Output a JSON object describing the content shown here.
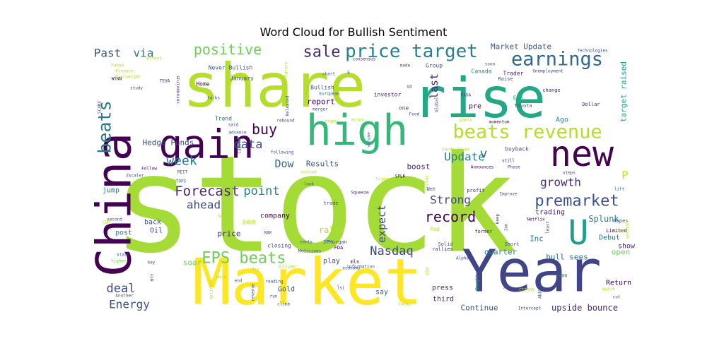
{
  "chart_data": {
    "type": "wordcloud",
    "title": "Word Cloud for Bullish Sentiment",
    "words": [
      {
        "text": "stock",
        "weight": 100,
        "color": "#a5db36"
      },
      {
        "text": "Market",
        "weight": 62,
        "color": "#fde725"
      },
      {
        "text": "share",
        "weight": 62,
        "color": "#b5de2b"
      },
      {
        "text": "rise",
        "weight": 58,
        "color": "#22a884"
      },
      {
        "text": "Year",
        "weight": 56,
        "color": "#414487"
      },
      {
        "text": "China",
        "weight": 48,
        "color": "#440154"
      },
      {
        "text": "high",
        "weight": 46,
        "color": "#35b779"
      },
      {
        "text": "new",
        "weight": 40,
        "color": "#440154"
      },
      {
        "text": "gain",
        "weight": 40,
        "color": "#440154"
      },
      {
        "text": "U",
        "weight": 34,
        "color": "#1f9e89"
      },
      {
        "text": "beats revenue",
        "weight": 24,
        "color": "#b5de2b"
      },
      {
        "text": "earnings",
        "weight": 22,
        "color": "#31688e"
      },
      {
        "text": "price target",
        "weight": 22,
        "color": "#26828e"
      },
      {
        "text": "beats",
        "weight": 22,
        "color": "#2a788e"
      },
      {
        "text": "premarket",
        "weight": 18,
        "color": "#3b528b"
      },
      {
        "text": "EPS beats",
        "weight": 18,
        "color": "#6ece58"
      },
      {
        "text": "sale",
        "weight": 18,
        "color": "#482878"
      },
      {
        "text": "positive",
        "weight": 17,
        "color": "#6ece58"
      },
      {
        "text": "record",
        "weight": 17,
        "color": "#440154"
      },
      {
        "text": "buy",
        "weight": 17,
        "color": "#440154"
      },
      {
        "text": "Nasdaq",
        "weight": 15,
        "color": "#3e4a89"
      },
      {
        "text": "Forecast",
        "weight": 15,
        "color": "#482878"
      },
      {
        "text": "week",
        "weight": 15,
        "color": "#2a788e"
      },
      {
        "text": "v",
        "weight": 15,
        "color": "#31688e"
      },
      {
        "text": "data",
        "weight": 15,
        "color": "#3b528b"
      },
      {
        "text": "deal",
        "weight": 15,
        "color": "#3e4a89"
      },
      {
        "text": "Update",
        "weight": 14,
        "color": "#26828e"
      },
      {
        "text": "Strong",
        "weight": 14,
        "color": "#414487"
      },
      {
        "text": "point",
        "weight": 14,
        "color": "#26828e"
      },
      {
        "text": "ahead",
        "weight": 14,
        "color": "#3e4a89"
      },
      {
        "text": "growth",
        "weight": 14,
        "color": "#482878"
      },
      {
        "text": "Energy",
        "weight": 14,
        "color": "#3b528b"
      },
      {
        "text": "Past",
        "weight": 14,
        "color": "#3b528b"
      },
      {
        "text": "via",
        "weight": 14,
        "color": "#2a788e"
      },
      {
        "text": "P",
        "weight": 14,
        "color": "#cde11d"
      },
      {
        "text": "Dow",
        "weight": 13,
        "color": "#31688e"
      },
      {
        "text": "expect",
        "weight": 13,
        "color": "#3e4a89"
      },
      {
        "text": "last",
        "weight": 12,
        "color": "#482878"
      },
      {
        "text": "Splunk",
        "weight": 11,
        "color": "#26828e"
      },
      {
        "text": "Results",
        "weight": 10,
        "color": "#3b528b"
      },
      {
        "text": "Hedge Funds",
        "weight": 10,
        "color": "#3e4a89"
      },
      {
        "text": "Market Update",
        "weight": 10,
        "color": "#3b528b"
      },
      {
        "text": "target raised",
        "weight": 10,
        "color": "#1f9e89"
      },
      {
        "text": "bull sees",
        "weight": 10,
        "color": "#31688e"
      },
      {
        "text": "upside bounce",
        "weight": 10,
        "color": "#482878"
      },
      {
        "text": "Continue",
        "weight": 10,
        "color": "#3b528b"
      },
      {
        "text": "boost",
        "weight": 10,
        "color": "#482878"
      },
      {
        "text": "rally",
        "weight": 10,
        "color": "#b5de2b"
      },
      {
        "text": "report",
        "weight": 10,
        "color": "#440154"
      },
      {
        "text": "Inc",
        "weight": 10,
        "color": "#2a788e"
      },
      {
        "text": "quarter",
        "weight": 9,
        "color": "#26828e"
      },
      {
        "text": "open",
        "weight": 9,
        "color": "#6ece58"
      },
      {
        "text": "soar",
        "weight": 9,
        "color": "#6ece58"
      },
      {
        "text": "price",
        "weight": 9,
        "color": "#482878"
      },
      {
        "text": "see",
        "weight": 9,
        "color": "#b5de2b"
      },
      {
        "text": "company",
        "weight": 9,
        "color": "#440154"
      },
      {
        "text": "trading",
        "weight": 9,
        "color": "#482878"
      },
      {
        "text": "Return",
        "weight": 9,
        "color": "#440154"
      },
      {
        "text": "back",
        "weight": 9,
        "color": "#3b528b"
      },
      {
        "text": "Oil",
        "weight": 9,
        "color": "#3e4a89"
      },
      {
        "text": "jump",
        "weight": 9,
        "color": "#2a788e"
      },
      {
        "text": "Gold",
        "weight": 9,
        "color": "#3b528b"
      },
      {
        "text": "say",
        "weight": 9,
        "color": "#31688e"
      },
      {
        "text": "third",
        "weight": 9,
        "color": "#482878"
      },
      {
        "text": "press",
        "weight": 9,
        "color": "#482878"
      },
      {
        "text": "play",
        "weight": 9,
        "color": "#3b528b"
      },
      {
        "text": "post",
        "weight": 9,
        "color": "#26828e"
      },
      {
        "text": "Debut",
        "weight": 9,
        "color": "#2a788e"
      },
      {
        "text": "show",
        "weight": 9,
        "color": "#482878"
      },
      {
        "text": "Ago",
        "weight": 9,
        "color": "#26828e"
      },
      {
        "text": "pre",
        "weight": 9,
        "color": "#440154"
      },
      {
        "text": "one",
        "weight": 8,
        "color": "#3b528b"
      },
      {
        "text": "Bullish",
        "weight": 8,
        "color": "#3b528b"
      },
      {
        "text": "Group",
        "weight": 8,
        "color": "#3b528b"
      },
      {
        "text": "Canada",
        "weight": 8,
        "color": "#26828e"
      },
      {
        "text": "Trader",
        "weight": 8,
        "color": "#482878"
      },
      {
        "text": "EPS",
        "weight": 8,
        "color": "#22a884"
      },
      {
        "text": "buyback",
        "weight": 8,
        "color": "#3b528b"
      },
      {
        "text": "Trend",
        "weight": 8,
        "color": "#31688e"
      },
      {
        "text": "January",
        "weight": 8,
        "color": "#3b528b"
      },
      {
        "text": "Home",
        "weight": 8,
        "color": "#440154"
      },
      {
        "text": "Never Bullish",
        "weight": 8,
        "color": "#3b528b"
      },
      {
        "text": "investor",
        "weight": 8,
        "color": "#482878"
      },
      {
        "text": "closing",
        "weight": 8,
        "color": "#3e4a89"
      },
      {
        "text": "Dollar",
        "weight": 7,
        "color": "#482878"
      },
      {
        "text": "change",
        "weight": 7,
        "color": "#482878"
      },
      {
        "text": "Raise",
        "weight": 7,
        "color": "#3b528b"
      },
      {
        "text": "Toyota",
        "weight": 7,
        "color": "#3b528b"
      },
      {
        "text": "mln",
        "weight": 7,
        "color": "#440154"
      },
      {
        "text": "Solid",
        "weight": 7,
        "color": "#3b528b"
      },
      {
        "text": "JPMorgan",
        "weight": 7,
        "color": "#3b528b"
      },
      {
        "text": "FDA",
        "weight": 7,
        "color": "#440154"
      },
      {
        "text": "Fed",
        "weight": 7,
        "color": "#b5de2b"
      },
      {
        "text": "Net",
        "weight": 7,
        "color": "#3b528b"
      },
      {
        "text": "profit",
        "weight": 7,
        "color": "#482878"
      },
      {
        "text": "Silver",
        "weight": 7,
        "color": "#b5de2b"
      },
      {
        "text": "trade",
        "weight": 7,
        "color": "#3b528b"
      },
      {
        "text": "rallies",
        "weight": 7,
        "color": "#482878"
      },
      {
        "text": "former",
        "weight": 7,
        "color": "#482878"
      },
      {
        "text": "Limited",
        "weight": 7,
        "color": "#440154"
      },
      {
        "text": "Hopes",
        "weight": 7,
        "color": "#3b528b"
      },
      {
        "text": "Short",
        "weight": 7,
        "color": "#3b528b"
      },
      {
        "text": "Alpha",
        "weight": 6,
        "color": "#3b528b"
      },
      {
        "text": "Bought",
        "weight": 6,
        "color": "#22a884"
      },
      {
        "text": "key",
        "weight": 6,
        "color": "#3b528b"
      },
      {
        "text": "start",
        "weight": 6,
        "color": "#3b528b"
      },
      {
        "text": "higher",
        "weight": 6,
        "color": "#6ece58"
      },
      {
        "text": "day",
        "weight": 6,
        "color": "#b5de2b"
      },
      {
        "text": "WYNN",
        "weight": 6,
        "color": "#440154"
      },
      {
        "text": "TEVA",
        "weight": 6,
        "color": "#482878"
      },
      {
        "text": "SPLK",
        "weight": 6,
        "color": "#440154"
      },
      {
        "text": "Announces",
        "weight": 6,
        "color": "#440154"
      },
      {
        "text": "Squeeze",
        "weight": 6,
        "color": "#482878"
      },
      {
        "text": "Friday",
        "weight": 6,
        "color": "#b5de2b"
      },
      {
        "text": "Zscaler",
        "weight": 6,
        "color": "#3b528b"
      },
      {
        "text": "REIT",
        "weight": 6,
        "color": "#3b528b"
      },
      {
        "text": "TOPS",
        "weight": 6,
        "color": "#31688e"
      },
      {
        "text": "Follow",
        "weight": 6,
        "color": "#440154"
      },
      {
        "text": "Technologies",
        "weight": 6,
        "color": "#3b528b"
      },
      {
        "text": "Unemployment",
        "weight": 6,
        "color": "#3e4a89"
      },
      {
        "text": "consensus",
        "weight": 6,
        "color": "#482878"
      },
      {
        "text": "soon",
        "weight": 6,
        "color": "#3b528b"
      },
      {
        "text": "made",
        "weight": 6,
        "color": "#3b528b"
      },
      {
        "text": "European",
        "weight": 6,
        "color": "#31688e"
      },
      {
        "text": "merger",
        "weight": 6,
        "color": "#3b528b"
      },
      {
        "text": "Food",
        "weight": 6,
        "color": "#3b528b"
      },
      {
        "text": "RADA",
        "weight": 6,
        "color": "#3b528b"
      },
      {
        "text": "momentum",
        "weight": 6,
        "color": "#440154"
      },
      {
        "text": "Funds Never",
        "weight": 6,
        "color": "#b5de2b"
      },
      {
        "text": "still",
        "weight": 6,
        "color": "#482878"
      },
      {
        "text": "Phase",
        "weight": 6,
        "color": "#3b528b"
      },
      {
        "text": "steps",
        "weight": 6,
        "color": "#3b528b"
      },
      {
        "text": "lift",
        "weight": 6,
        "color": "#31688e"
      },
      {
        "text": "Improve",
        "weight": 6,
        "color": "#3b528b"
      },
      {
        "text": "Netflix",
        "weight": 6,
        "color": "#440154"
      },
      {
        "text": "least",
        "weight": 6,
        "color": "#3b528b"
      },
      {
        "text": "Jan",
        "weight": 6,
        "color": "#3b528b"
      },
      {
        "text": "Keep",
        "weight": 6,
        "color": "#3b528b"
      },
      {
        "text": "CITRON",
        "weight": 6,
        "color": "#b5de2b"
      },
      {
        "text": "Intercept",
        "weight": 6,
        "color": "#3b528b"
      },
      {
        "text": "AbbVie",
        "weight": 6,
        "color": "#3b528b"
      },
      {
        "text": "SONO",
        "weight": 6,
        "color": "#31688e"
      },
      {
        "text": "Watch",
        "weight": 6,
        "color": "#b5de2b"
      },
      {
        "text": "cut",
        "weight": 6,
        "color": "#3b528b"
      },
      {
        "text": "today",
        "weight": 6,
        "color": "#b5de2b"
      },
      {
        "text": "lsi",
        "weight": 6,
        "color": "#3b528b"
      },
      {
        "text": "climb",
        "weight": 6,
        "color": "#31688e"
      },
      {
        "text": "run",
        "weight": 6,
        "color": "#3b528b"
      },
      {
        "text": "reading",
        "weight": 6,
        "color": "#3b528b"
      },
      {
        "text": "end",
        "weight": 6,
        "color": "#3b528b"
      },
      {
        "text": "Another",
        "weight": 6,
        "color": "#3b528b"
      },
      {
        "text": "amid",
        "weight": 6,
        "color": "#b5de2b"
      },
      {
        "text": "MTY",
        "weight": 6,
        "color": "#3b528b"
      },
      {
        "text": "revenue",
        "weight": 6,
        "color": "#3b528b"
      },
      {
        "text": "information",
        "weight": 6,
        "color": "#3b528b"
      },
      {
        "text": "cents",
        "weight": 6,
        "color": "#3b528b"
      },
      {
        "text": "Medicines",
        "weight": 6,
        "color": "#3b528b"
      },
      {
        "text": "MAR",
        "weight": 6,
        "color": "#3b528b"
      },
      {
        "text": "Gained",
        "weight": 6,
        "color": "#b5de2b"
      },
      {
        "text": "second",
        "weight": 6,
        "color": "#3b528b"
      },
      {
        "text": "CEO",
        "weight": 6,
        "color": "#b5de2b"
      },
      {
        "text": "SCANX",
        "weight": 6,
        "color": "#3b528b"
      },
      {
        "text": "coronavirus",
        "weight": 6,
        "color": "#482878"
      },
      {
        "text": "effect",
        "weight": 6,
        "color": "#b5de2b"
      },
      {
        "text": "Finance",
        "weight": 6,
        "color": "#b5de2b"
      },
      {
        "text": "Yahoo",
        "weight": 6,
        "color": "#b5de2b"
      },
      {
        "text": "study",
        "weight": 6,
        "color": "#3b528b"
      },
      {
        "text": "Overweight",
        "weight": 6,
        "color": "#b5de2b"
      },
      {
        "text": "said",
        "weight": 6,
        "color": "#3b528b"
      },
      {
        "text": "advance",
        "weight": 6,
        "color": "#3b528b"
      },
      {
        "text": "rebound",
        "weight": 6,
        "color": "#3b528b"
      },
      {
        "text": "following",
        "weight": 6,
        "color": "#3b528b"
      },
      {
        "text": "extend",
        "weight": 6,
        "color": "#b5de2b"
      },
      {
        "text": "look",
        "weight": 6,
        "color": "#3b528b"
      },
      {
        "text": "Capital",
        "weight": 6,
        "color": "#3b528b"
      },
      {
        "text": "signs",
        "weight": 6,
        "color": "#b5de2b"
      },
      {
        "text": "major",
        "weight": 6,
        "color": "#b5de2b"
      },
      {
        "text": "volume",
        "weight": 6,
        "color": "#3b528b"
      },
      {
        "text": "parts",
        "weight": 6,
        "color": "#b5de2b"
      },
      {
        "text": "Released",
        "weight": 6,
        "color": "#3b528b"
      },
      {
        "text": "Global",
        "weight": 6,
        "color": "#3b528b"
      },
      {
        "text": "Future",
        "weight": 6,
        "color": "#b5de2b"
      },
      {
        "text": "chart",
        "weight": 6,
        "color": "#3b528b"
      },
      {
        "text": "E",
        "weight": 6,
        "color": "#3b528b"
      },
      {
        "text": "Q4",
        "weight": 6,
        "color": "#3b528b"
      },
      {
        "text": "talks",
        "weight": 6,
        "color": "#3b528b"
      },
      {
        "text": "economy",
        "weight": 6,
        "color": "#3b528b"
      },
      {
        "text": "ASX",
        "weight": 6,
        "color": "#b5de2b"
      },
      {
        "text": "sector",
        "weight": 6,
        "color": "#b5de2b"
      },
      {
        "text": "Live",
        "weight": 6,
        "color": "#b5de2b"
      },
      {
        "text": "session",
        "weight": 6,
        "color": "#b5de2b"
      },
      {
        "text": "virus",
        "weight": 6,
        "color": "#3b528b"
      },
      {
        "text": "optimism",
        "weight": 6,
        "color": "#b5de2b"
      }
    ]
  }
}
